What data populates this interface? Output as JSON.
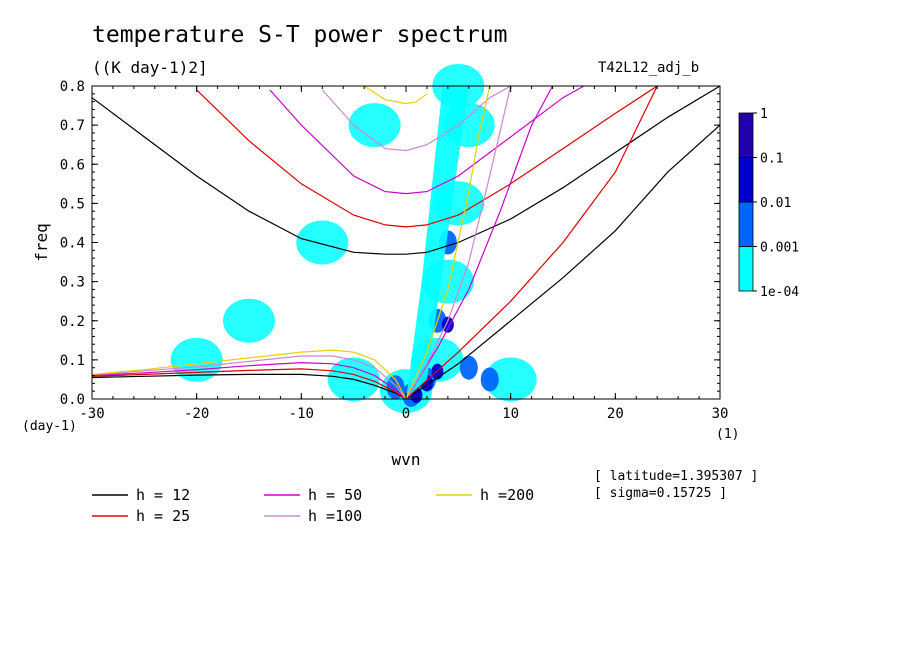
{
  "figure": {
    "title": "temperature S-T power spectrum",
    "units": "((K day-1)2]",
    "run_id": "T42L12_adj_b",
    "notes": [
      "[ latitude=1.395307 ]",
      "[ sigma=0.15725 ]"
    ]
  },
  "chart_data": {
    "type": "heatmap",
    "title": "temperature S-T power spectrum",
    "xlabel": "wvn",
    "ylabel": "freq",
    "x_unit_label": "(1)",
    "y_unit_label": "(day-1)",
    "xlim": [
      -30,
      30
    ],
    "ylim": [
      0,
      0.8
    ],
    "x_ticks": [
      -30,
      -20,
      -10,
      0,
      10,
      20,
      30
    ],
    "x_tick_labels": [
      "-30",
      "-20",
      "-10",
      "0",
      "10",
      "20",
      "30"
    ],
    "y_ticks": [
      0,
      0.1,
      0.2,
      0.3,
      0.4,
      0.5,
      0.6,
      0.7,
      0.8
    ],
    "y_tick_labels": [
      "0.0",
      "0.1",
      "0.2",
      "0.3",
      "0.4",
      "0.5",
      "0.6",
      "0.7",
      "0.8"
    ],
    "colorbar": {
      "levels": [
        0.0001,
        0.001,
        0.01,
        0.1,
        1
      ],
      "labels": [
        "1e-04",
        "0.001",
        "0.01",
        "0.1",
        "1"
      ],
      "colors": [
        "#00ffff",
        "#0066ff",
        "#0000cc",
        "#2200aa"
      ]
    },
    "shaded_regions": [
      {
        "level": "1e-04 to 0.001",
        "description_points": [
          {
            "x": 0,
            "y": 0.02
          },
          {
            "x": 3,
            "y": 0.1
          },
          {
            "x": 4,
            "y": 0.3
          },
          {
            "x": 5,
            "y": 0.5
          },
          {
            "x": 6,
            "y": 0.7
          },
          {
            "x": 5,
            "y": 0.8
          },
          {
            "x": -3,
            "y": 0.7
          },
          {
            "x": -8,
            "y": 0.4
          },
          {
            "x": -15,
            "y": 0.2
          },
          {
            "x": -20,
            "y": 0.1
          },
          {
            "x": -5,
            "y": 0.05
          },
          {
            "x": 10,
            "y": 0.05
          }
        ]
      },
      {
        "level": "0.001 to 0.01",
        "description_points": [
          {
            "x": 0.5,
            "y": 0.01
          },
          {
            "x": 2,
            "y": 0.05
          },
          {
            "x": 3,
            "y": 0.2
          },
          {
            "x": 4,
            "y": 0.4
          },
          {
            "x": 6,
            "y": 0.08
          },
          {
            "x": -1,
            "y": 0.03
          },
          {
            "x": 8,
            "y": 0.05
          }
        ]
      },
      {
        "level": "0.01 to 0.1",
        "description_points": [
          {
            "x": 1,
            "y": 0.01
          },
          {
            "x": 2,
            "y": 0.04
          },
          {
            "x": 3,
            "y": 0.07
          },
          {
            "x": 4,
            "y": 0.19
          }
        ]
      }
    ],
    "series": [
      {
        "name": "h = 12",
        "color": "#000000",
        "branches": [
          {
            "kind": "inertia-gravity",
            "x": [
              -30,
              -25,
              -20,
              -15,
              -10,
              -5,
              -2,
              0,
              2,
              5,
              10,
              15,
              20,
              25,
              30
            ],
            "y": [
              0.77,
              0.67,
              0.57,
              0.48,
              0.41,
              0.375,
              0.37,
              0.37,
              0.375,
              0.4,
              0.46,
              0.54,
              0.63,
              0.72,
              0.8
            ]
          },
          {
            "kind": "kelvin",
            "x": [
              0,
              5,
              10,
              15,
              20,
              25,
              30
            ],
            "y": [
              0,
              0.09,
              0.2,
              0.31,
              0.43,
              0.58,
              0.7
            ]
          },
          {
            "kind": "rossby",
            "x": [
              -30,
              -25,
              -20,
              -15,
              -10,
              -7,
              -5,
              -3,
              -1,
              0
            ],
            "y": [
              0.055,
              0.058,
              0.061,
              0.063,
              0.063,
              0.058,
              0.05,
              0.035,
              0.015,
              0
            ]
          }
        ]
      },
      {
        "name": "h = 25",
        "color": "#dd0000",
        "branches": [
          {
            "kind": "inertia-gravity",
            "x": [
              -20,
              -15,
              -10,
              -5,
              -2,
              0,
              2,
              5,
              10,
              15,
              20,
              24
            ],
            "y": [
              0.79,
              0.66,
              0.55,
              0.47,
              0.445,
              0.44,
              0.445,
              0.47,
              0.55,
              0.64,
              0.73,
              0.8
            ]
          },
          {
            "kind": "kelvin",
            "x": [
              0,
              5,
              10,
              15,
              20,
              24
            ],
            "y": [
              0,
              0.12,
              0.25,
              0.4,
              0.58,
              0.8
            ]
          },
          {
            "kind": "rossby",
            "x": [
              -30,
              -25,
              -20,
              -15,
              -10,
              -7,
              -5,
              -3,
              -1,
              0
            ],
            "y": [
              0.058,
              0.063,
              0.068,
              0.073,
              0.077,
              0.072,
              0.063,
              0.045,
              0.018,
              0
            ]
          }
        ]
      },
      {
        "name": "h = 50",
        "color": "#cc00cc",
        "branches": [
          {
            "kind": "inertia-gravity",
            "x": [
              -13,
              -10,
              -5,
              -2,
              0,
              2,
              5,
              10,
              15,
              17
            ],
            "y": [
              0.79,
              0.7,
              0.57,
              0.53,
              0.525,
              0.53,
              0.57,
              0.67,
              0.77,
              0.8
            ]
          },
          {
            "kind": "kelvin",
            "x": [
              0,
              3,
              6,
              9,
              12,
              14
            ],
            "y": [
              0,
              0.13,
              0.28,
              0.48,
              0.7,
              0.8
            ]
          },
          {
            "kind": "rossby",
            "x": [
              -30,
              -25,
              -20,
              -15,
              -10,
              -7,
              -5,
              -3,
              -1,
              0
            ],
            "y": [
              0.06,
              0.067,
              0.075,
              0.085,
              0.093,
              0.09,
              0.08,
              0.06,
              0.024,
              0
            ]
          }
        ]
      },
      {
        "name": "h =100",
        "color": "#cc88cc",
        "branches": [
          {
            "kind": "inertia-gravity",
            "x": [
              -8,
              -5,
              -2,
              0,
              2,
              5,
              8,
              10
            ],
            "y": [
              0.79,
              0.7,
              0.64,
              0.635,
              0.65,
              0.7,
              0.77,
              0.8
            ]
          },
          {
            "kind": "kelvin",
            "x": [
              0,
              2,
              4,
              6,
              8,
              10
            ],
            "y": [
              0,
              0.09,
              0.2,
              0.35,
              0.57,
              0.8
            ]
          },
          {
            "kind": "rossby",
            "x": [
              -30,
              -25,
              -20,
              -15,
              -10,
              -7,
              -5,
              -3,
              -1,
              0
            ],
            "y": [
              0.062,
              0.072,
              0.082,
              0.096,
              0.11,
              0.11,
              0.1,
              0.08,
              0.035,
              0
            ]
          }
        ]
      },
      {
        "name": "h =200",
        "color": "#e8d000",
        "branches": [
          {
            "kind": "inertia-gravity",
            "x": [
              -4,
              -2,
              0,
              1,
              2
            ],
            "y": [
              0.8,
              0.765,
              0.755,
              0.76,
              0.78
            ]
          },
          {
            "kind": "kelvin",
            "x": [
              0,
              2,
              4,
              6,
              7,
              8
            ],
            "y": [
              0,
              0.12,
              0.28,
              0.53,
              0.68,
              0.8
            ]
          },
          {
            "kind": "rossby",
            "x": [
              -30,
              -25,
              -20,
              -15,
              -10,
              -7,
              -5,
              -3,
              -1,
              0
            ],
            "y": [
              0.063,
              0.075,
              0.09,
              0.105,
              0.12,
              0.125,
              0.12,
              0.1,
              0.05,
              0
            ]
          }
        ]
      }
    ],
    "legend_placement": "bottom-left"
  }
}
